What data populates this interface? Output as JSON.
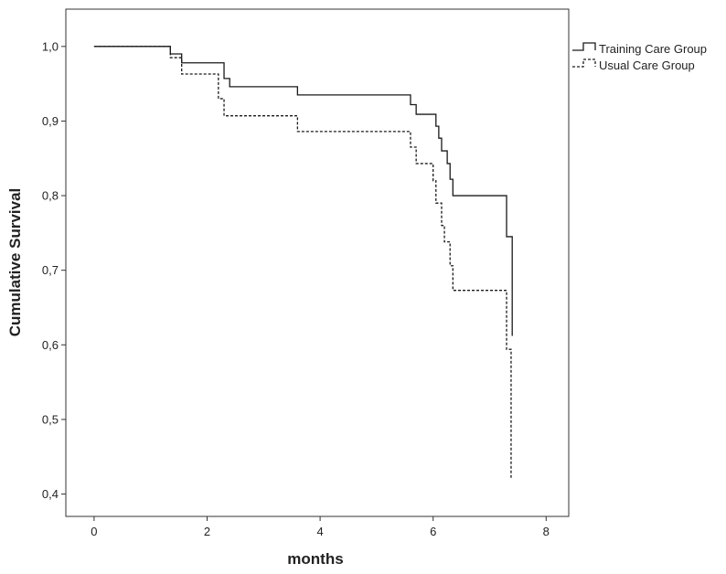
{
  "chart_data": {
    "type": "line",
    "subtype": "kaplan-meier-step",
    "title": "",
    "xlabel": "months",
    "ylabel": "Cumulative Survival",
    "xlim": [
      -0.5,
      8.4
    ],
    "ylim": [
      0.37,
      1.05
    ],
    "x_ticks": [
      0,
      2,
      4,
      6,
      8
    ],
    "x_tick_labels": [
      "0",
      "2",
      "4",
      "6",
      "8"
    ],
    "y_ticks": [
      0.4,
      0.5,
      0.6,
      0.7,
      0.8,
      0.9,
      1.0
    ],
    "y_tick_labels": [
      "0,4",
      "0,5",
      "0,6",
      "0,7",
      "0,8",
      "0,9",
      "1,0"
    ],
    "grid": false,
    "legend_position": "top-right, outside plot",
    "series": [
      {
        "name": "Training Care Group",
        "line_style": "solid",
        "color": "#1a1a1a",
        "points": [
          [
            0,
            1.0
          ],
          [
            1.35,
            1.0
          ],
          [
            1.35,
            0.99
          ],
          [
            1.55,
            0.99
          ],
          [
            1.55,
            0.978
          ],
          [
            2.3,
            0.978
          ],
          [
            2.3,
            0.957
          ],
          [
            2.4,
            0.957
          ],
          [
            2.4,
            0.946
          ],
          [
            3.6,
            0.946
          ],
          [
            3.6,
            0.935
          ],
          [
            5.6,
            0.935
          ],
          [
            5.6,
            0.922
          ],
          [
            5.7,
            0.922
          ],
          [
            5.7,
            0.909
          ],
          [
            6.05,
            0.909
          ],
          [
            6.05,
            0.893
          ],
          [
            6.1,
            0.893
          ],
          [
            6.1,
            0.877
          ],
          [
            6.15,
            0.877
          ],
          [
            6.15,
            0.86
          ],
          [
            6.25,
            0.86
          ],
          [
            6.25,
            0.843
          ],
          [
            6.3,
            0.843
          ],
          [
            6.3,
            0.822
          ],
          [
            6.35,
            0.822
          ],
          [
            6.35,
            0.8
          ],
          [
            7.3,
            0.8
          ],
          [
            7.3,
            0.745
          ],
          [
            7.4,
            0.745
          ],
          [
            7.4,
            0.612
          ]
        ]
      },
      {
        "name": "Usual Care Group",
        "line_style": "dashed",
        "color": "#1a1a1a",
        "points": [
          [
            0,
            1.0
          ],
          [
            1.35,
            1.0
          ],
          [
            1.35,
            0.985
          ],
          [
            1.55,
            0.985
          ],
          [
            1.55,
            0.963
          ],
          [
            2.2,
            0.963
          ],
          [
            2.2,
            0.93
          ],
          [
            2.3,
            0.93
          ],
          [
            2.3,
            0.907
          ],
          [
            3.6,
            0.907
          ],
          [
            3.6,
            0.886
          ],
          [
            5.6,
            0.886
          ],
          [
            5.6,
            0.865
          ],
          [
            5.7,
            0.865
          ],
          [
            5.7,
            0.843
          ],
          [
            6.0,
            0.843
          ],
          [
            6.0,
            0.82
          ],
          [
            6.05,
            0.82
          ],
          [
            6.05,
            0.79
          ],
          [
            6.15,
            0.79
          ],
          [
            6.15,
            0.76
          ],
          [
            6.2,
            0.76
          ],
          [
            6.2,
            0.738
          ],
          [
            6.3,
            0.738
          ],
          [
            6.3,
            0.706
          ],
          [
            6.35,
            0.706
          ],
          [
            6.35,
            0.673
          ],
          [
            7.3,
            0.673
          ],
          [
            7.3,
            0.594
          ],
          [
            7.38,
            0.594
          ],
          [
            7.38,
            0.42
          ]
        ]
      }
    ]
  }
}
